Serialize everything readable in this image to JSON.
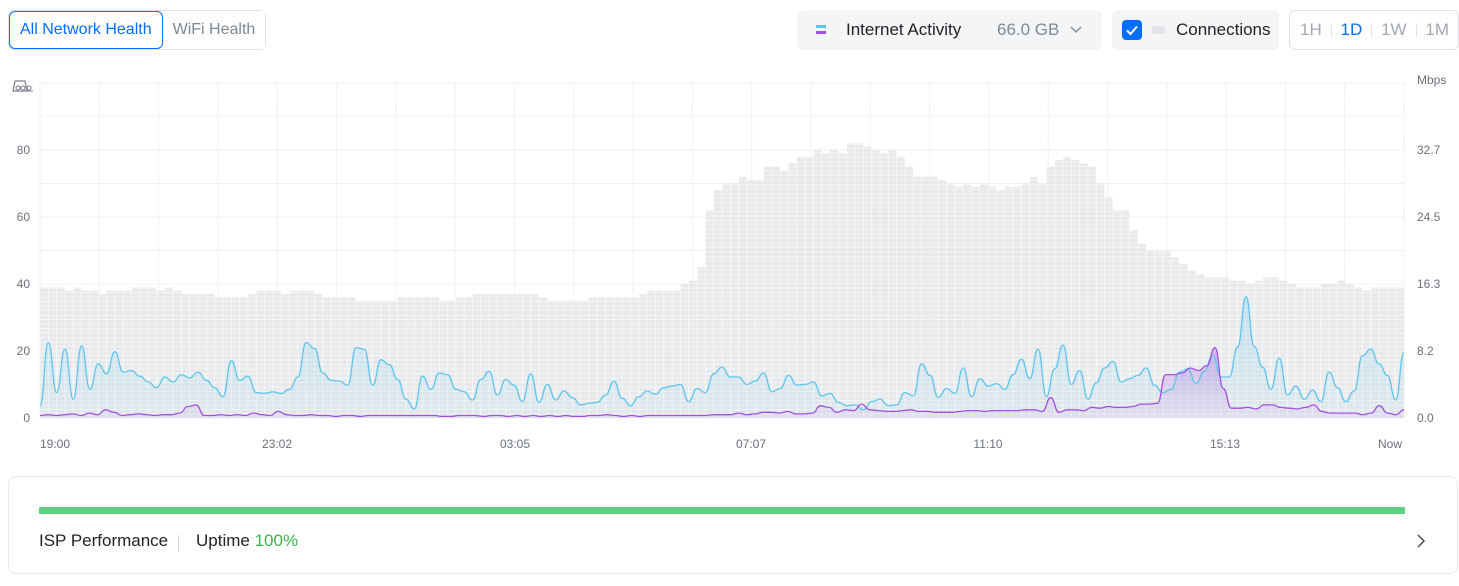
{
  "tabs": [
    {
      "label": "All Network Health",
      "active": true
    },
    {
      "label": "WiFi Health",
      "active": false
    }
  ],
  "metric_select": {
    "label": "Internet Activity",
    "value": "66.0 GB",
    "icon": "chevron-down-icon"
  },
  "connections_toggle": {
    "label": "Connections",
    "checked": true
  },
  "time_ranges": [
    {
      "label": "1H",
      "active": false
    },
    {
      "label": "1D",
      "active": true
    },
    {
      "label": "1W",
      "active": false
    },
    {
      "label": "1M",
      "active": false
    }
  ],
  "colors": {
    "accent": "#006fff",
    "download": "#5ec6ee",
    "upload": "#a350e0",
    "connections": "#e8e9eb",
    "uptime": "#39b54a",
    "isp_bar": "#5cd281"
  },
  "chart_data": {
    "type": "line",
    "x_tick_labels": [
      "19:00",
      "23:02",
      "03:05",
      "07:07",
      "11:10",
      "15:13",
      "Now"
    ],
    "left_axis": {
      "ticks": [
        "0",
        "20",
        "40",
        "60",
        "80"
      ],
      "ylim": [
        0,
        100
      ],
      "icon": "connections-icon"
    },
    "right_axis": {
      "unit": "Mbps",
      "ticks": [
        "0.0",
        "8.2",
        "16.3",
        "24.5",
        "32.7"
      ],
      "ylim": [
        0,
        40.9
      ]
    },
    "series": [
      {
        "color": "#e8e9eb",
        "axis": "left",
        "kind": "bar",
        "values": [
          39,
          39,
          39,
          38,
          39,
          38,
          38,
          37,
          38,
          38,
          38,
          39,
          39,
          39,
          38,
          39,
          38,
          37,
          37,
          37,
          37,
          36,
          36,
          36,
          36,
          37,
          38,
          38,
          38,
          37,
          38,
          38,
          38,
          37,
          36,
          36,
          36,
          36,
          35,
          35,
          35,
          35,
          35,
          36,
          36,
          36,
          36,
          36,
          35,
          35,
          36,
          36,
          37,
          37,
          37,
          37,
          37,
          37,
          37,
          37,
          36,
          35,
          35,
          35,
          35,
          35,
          36,
          36,
          36,
          36,
          36,
          36,
          37,
          38,
          38,
          38,
          38,
          40,
          41,
          45,
          62,
          68,
          70,
          70,
          72,
          71,
          71,
          75,
          75,
          74,
          76,
          78,
          78,
          80,
          79,
          80,
          79,
          82,
          82,
          81,
          80,
          79,
          80,
          78,
          75,
          72,
          72,
          72,
          71,
          70,
          69,
          70,
          69,
          70,
          69,
          68,
          69,
          69,
          70,
          72,
          70,
          75,
          77,
          78,
          77,
          76,
          75,
          70,
          66,
          62,
          62,
          56,
          52,
          50,
          50,
          50,
          48,
          46,
          44,
          43,
          42,
          42,
          42,
          41,
          41,
          40,
          41,
          42,
          42,
          41,
          40,
          39,
          39,
          39,
          40,
          40,
          41,
          40,
          39,
          38,
          39,
          39,
          39,
          39
        ]
      },
      {
        "color": "#5ec6ee",
        "axis": "right",
        "kind": "line",
        "values": [
          1.5,
          9.2,
          3.1,
          8.4,
          2.3,
          8.8,
          3.5,
          6.6,
          5.4,
          8.1,
          5.6,
          5.8,
          5.1,
          4.4,
          3.7,
          5.0,
          4.4,
          5.3,
          4.9,
          5.6,
          4.6,
          3.7,
          2.6,
          7.0,
          4.6,
          5.1,
          3.1,
          3.0,
          3.2,
          3.0,
          3.5,
          5.0,
          9.2,
          8.5,
          5.5,
          4.6,
          4.5,
          4.0,
          8.6,
          8.4,
          4.0,
          7.1,
          6.5,
          4.7,
          2.3,
          1.1,
          5.1,
          3.5,
          5.5,
          5.3,
          3.5,
          3.2,
          2.2,
          4.7,
          5.7,
          2.8,
          4.7,
          4.0,
          2.0,
          5.4,
          1.9,
          4.1,
          2.2,
          3.3,
          2.5,
          1.6,
          1.8,
          1.9,
          2.8,
          4.5,
          2.4,
          1.5,
          2.6,
          3.3,
          2.9,
          3.7,
          3.9,
          4.1,
          2.0,
          3.6,
          3.1,
          5.4,
          6.2,
          5.0,
          5.0,
          4.1,
          4.5,
          5.5,
          3.2,
          3.6,
          5.2,
          4.0,
          4.1,
          4.4,
          2.7,
          3.0,
          1.9,
          1.5,
          1.6,
          1.0,
          2.0,
          2.3,
          1.5,
          1.6,
          3.1,
          2.7,
          6.6,
          5.2,
          2.5,
          3.6,
          3.0,
          6.1,
          2.6,
          4.8,
          3.9,
          4.2,
          3.5,
          5.3,
          7.2,
          4.8,
          8.4,
          2.6,
          6.0,
          8.9,
          4.1,
          5.8,
          2.3,
          4.3,
          6.1,
          6.9,
          4.4,
          4.8,
          5.2,
          6.1,
          4.0,
          3.1,
          3.5,
          5.6,
          6.0,
          4.2,
          5.7,
          7.7,
          5.0,
          5.0,
          8.7,
          14.8,
          8.7,
          6.2,
          3.5,
          7.3,
          2.8,
          3.9,
          2.3,
          3.4,
          2.0,
          5.6,
          3.7,
          2.0,
          3.3,
          7.6,
          8.4,
          6.6,
          5.2,
          2.2,
          8.0
        ]
      },
      {
        "color": "#a350e0",
        "axis": "right",
        "kind": "line",
        "values": [
          0.3,
          0.4,
          0.3,
          0.4,
          0.5,
          0.3,
          0.6,
          0.4,
          1.0,
          0.7,
          0.3,
          0.4,
          0.5,
          0.4,
          0.3,
          0.4,
          0.4,
          0.6,
          1.4,
          1.6,
          0.3,
          0.3,
          0.4,
          0.3,
          0.4,
          0.3,
          0.6,
          0.4,
          0.3,
          0.8,
          0.4,
          0.3,
          0.3,
          0.4,
          0.3,
          0.3,
          0.2,
          0.3,
          0.3,
          0.2,
          0.3,
          0.3,
          0.3,
          0.3,
          0.3,
          0.3,
          0.3,
          0.3,
          0.3,
          0.2,
          0.2,
          0.3,
          0.3,
          0.3,
          0.2,
          0.3,
          0.3,
          0.2,
          0.3,
          0.2,
          0.3,
          0.2,
          0.3,
          0.2,
          0.3,
          0.2,
          0.2,
          0.3,
          0.3,
          0.4,
          0.3,
          0.2,
          0.3,
          0.2,
          0.3,
          0.3,
          0.3,
          0.3,
          0.3,
          0.3,
          0.3,
          0.3,
          0.4,
          0.4,
          0.4,
          0.6,
          0.4,
          0.5,
          0.7,
          0.7,
          0.6,
          0.8,
          0.5,
          0.5,
          0.6,
          1.5,
          1.3,
          0.7,
          1.0,
          0.9,
          1.7,
          1.0,
          0.9,
          0.8,
          0.8,
          0.9,
          1.0,
          0.8,
          0.8,
          0.7,
          0.7,
          0.7,
          0.8,
          0.9,
          0.9,
          0.8,
          0.9,
          0.9,
          0.9,
          0.9,
          1.0,
          1.0,
          0.8,
          2.5,
          0.7,
          1.0,
          1.0,
          0.9,
          1.3,
          1.2,
          1.4,
          1.3,
          1.3,
          1.4,
          1.7,
          1.7,
          1.8,
          5.3,
          5.3,
          5.5,
          6.1,
          5.8,
          6.4,
          8.6,
          3.6,
          1.2,
          1.2,
          1.3,
          1.1,
          1.6,
          1.6,
          1.3,
          1.2,
          1.1,
          1.3,
          1.6,
          0.8,
          0.6,
          0.6,
          0.6,
          0.6,
          0.4,
          0.6,
          1.5,
          0.6,
          0.4,
          1.0
        ]
      }
    ]
  },
  "isp": {
    "label": "ISP Performance",
    "uptime_label": "Uptime",
    "uptime_value": "100%",
    "bar_fraction": 1.0
  }
}
